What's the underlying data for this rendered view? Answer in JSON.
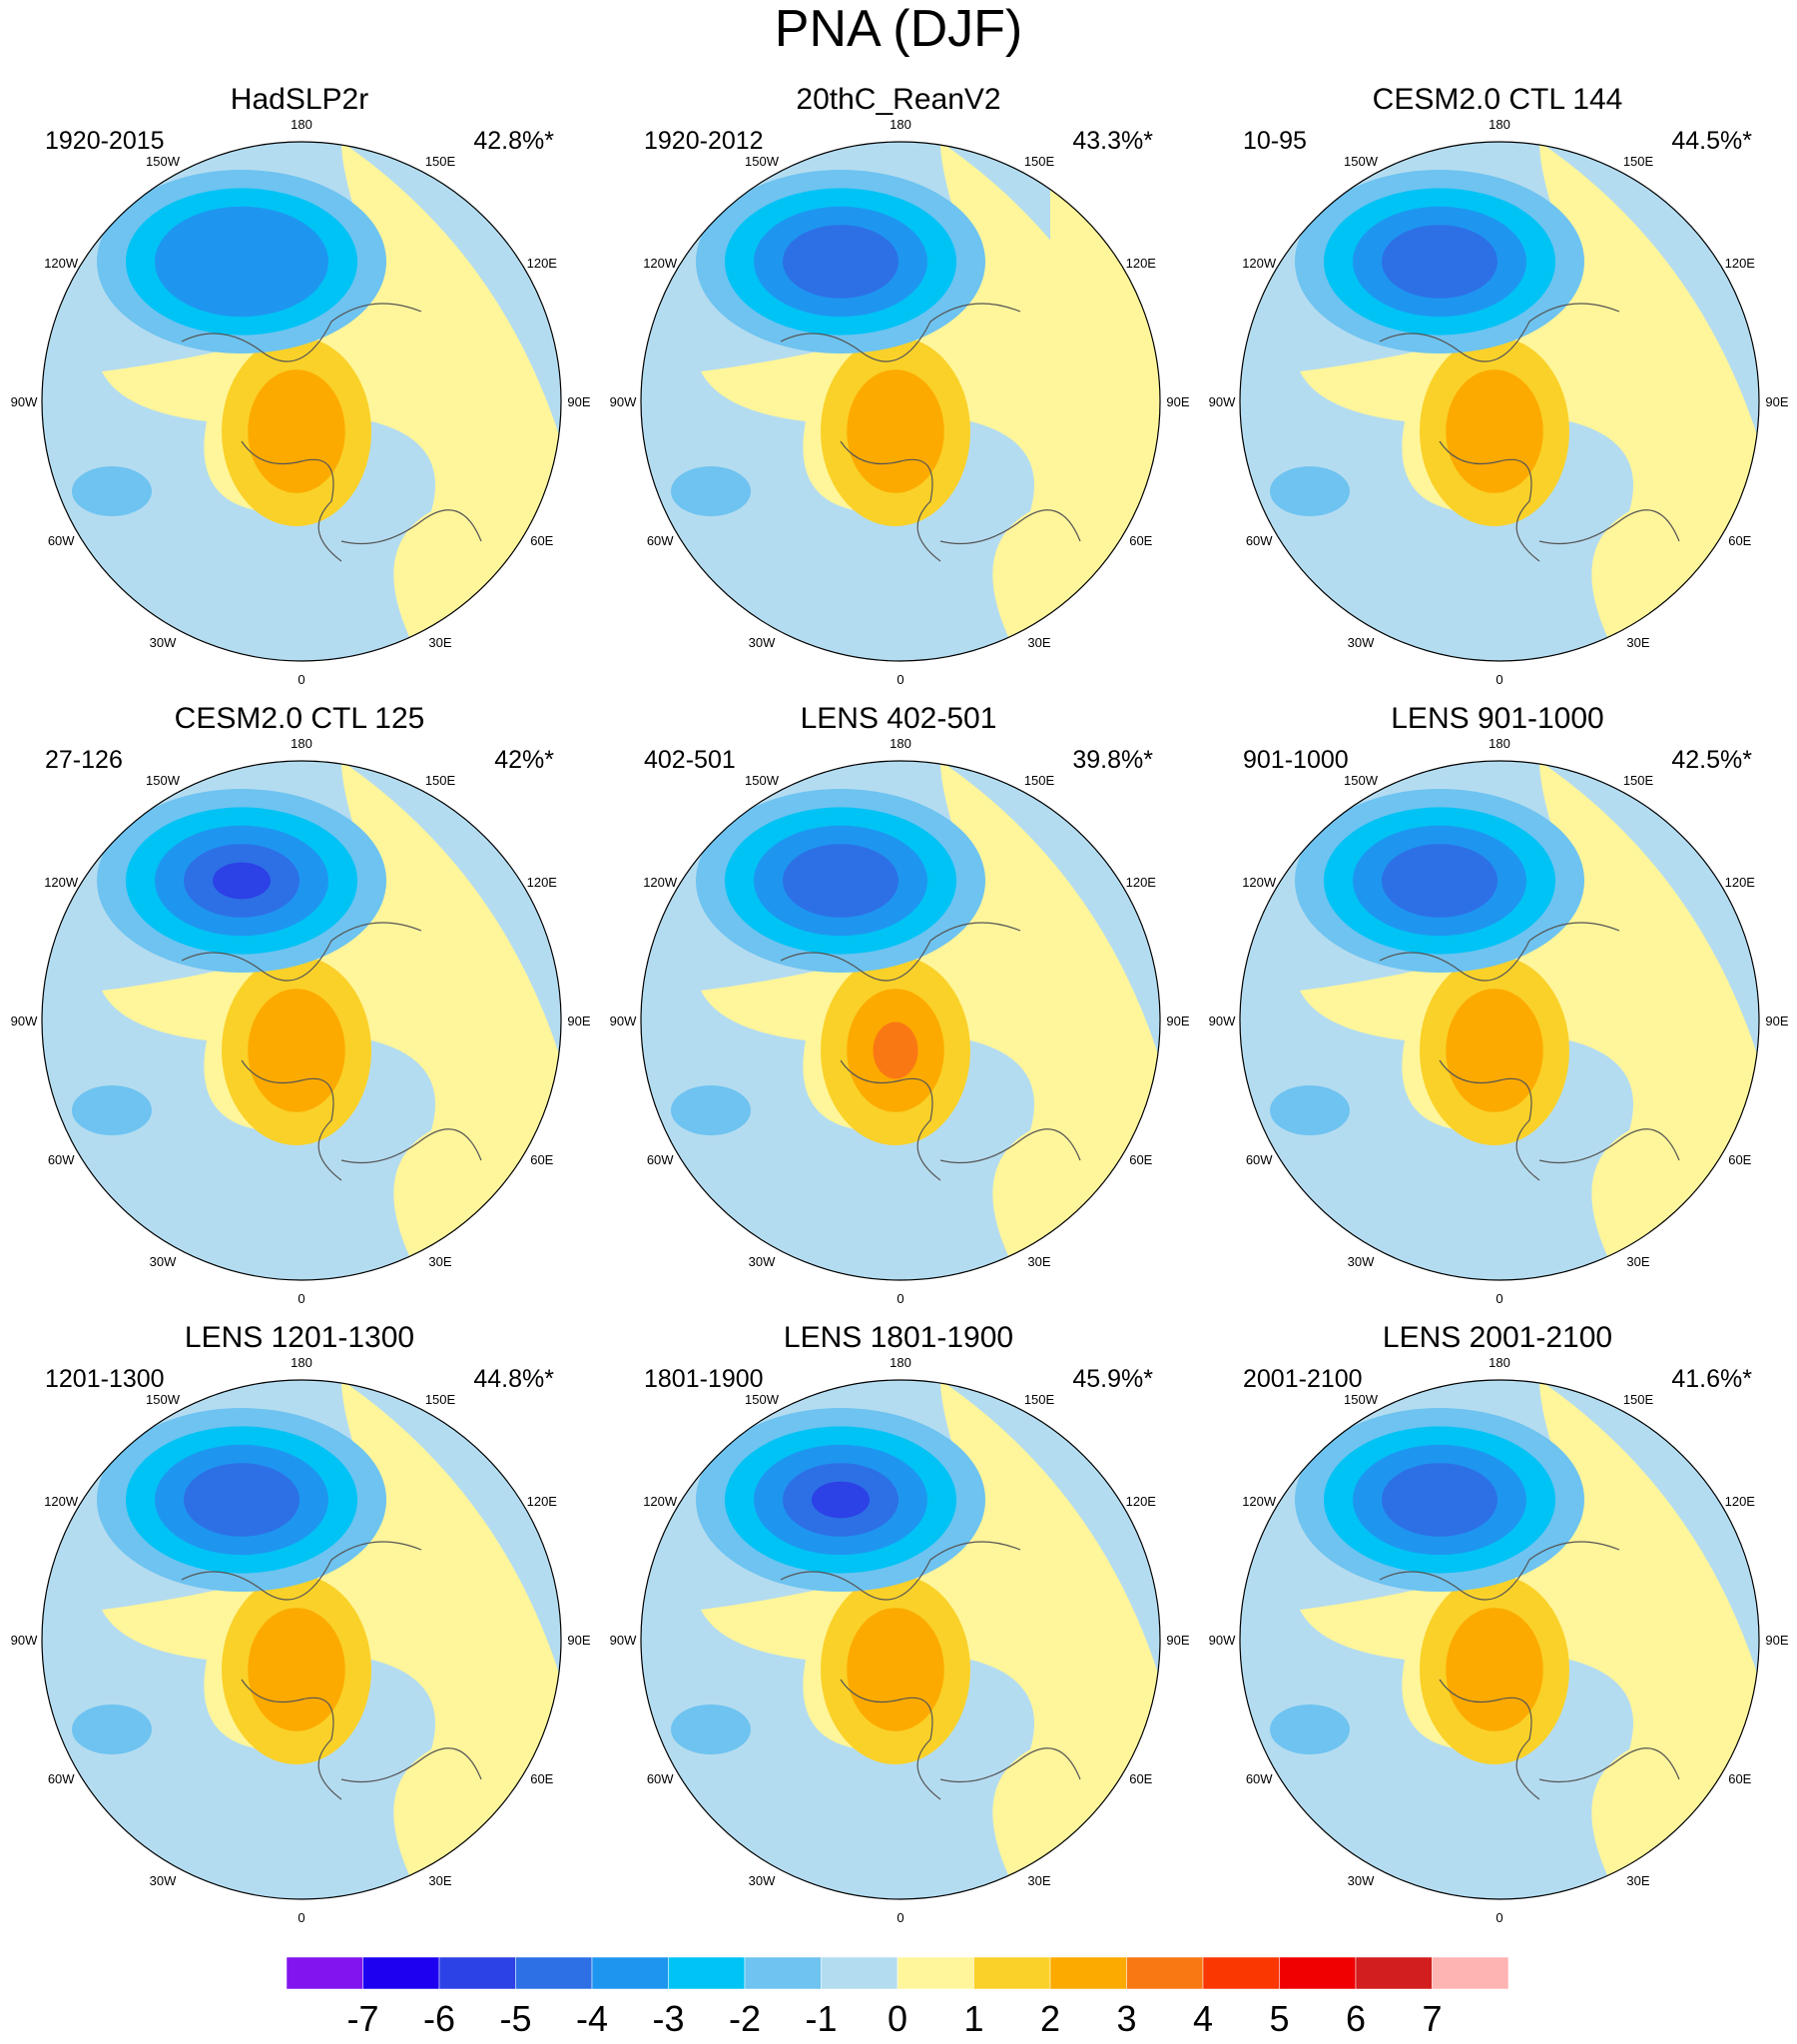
{
  "title": "PNA (DJF)",
  "longitude_labels": [
    "180",
    "150E",
    "120E",
    "90E",
    "60E",
    "30E",
    "0",
    "30W",
    "60W",
    "90W",
    "120W",
    "150W"
  ],
  "colorbar": {
    "ticks": [
      "-7",
      "-6",
      "-5",
      "-4",
      "-3",
      "-2",
      "-1",
      "0",
      "1",
      "2",
      "3",
      "4",
      "5",
      "6",
      "7"
    ],
    "colors": [
      "#8214f0",
      "#1e00f0",
      "#2c41e6",
      "#2d70e6",
      "#1e96f0",
      "#00c3f5",
      "#6ec3f0",
      "#b4dcf0",
      "#fff59b",
      "#fad128",
      "#fcaa00",
      "#fa7814",
      "#fa3700",
      "#f00000",
      "#d21e1e",
      "#ffb4b4"
    ]
  },
  "panels": [
    {
      "title": "HadSLP2r",
      "period": "1920-2015",
      "variance": "42.8%*"
    },
    {
      "title": "20thC_ReanV2",
      "period": "1920-2012",
      "variance": "43.3%*"
    },
    {
      "title": "CESM2.0 CTL 144",
      "period": "10-95",
      "variance": "44.5%*"
    },
    {
      "title": "CESM2.0 CTL 125",
      "period": "27-126",
      "variance": "42%*"
    },
    {
      "title": "LENS 402-501",
      "period": "402-501",
      "variance": "39.8%*"
    },
    {
      "title": "LENS 901-1000",
      "period": "901-1000",
      "variance": "42.5%*"
    },
    {
      "title": "LENS 1201-1300",
      "period": "1201-1300",
      "variance": "44.8%*"
    },
    {
      "title": "LENS 1801-1900",
      "period": "1801-1900",
      "variance": "45.9%*"
    },
    {
      "title": "LENS 2001-2100",
      "period": "2001-2100",
      "variance": "41.6%*"
    }
  ]
}
